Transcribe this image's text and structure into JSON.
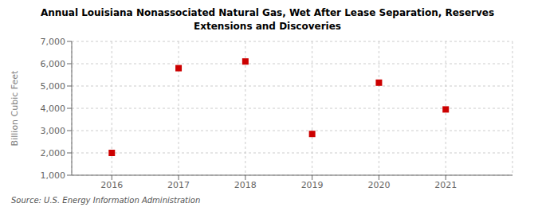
{
  "chart_data": {
    "type": "scatter",
    "title": "Annual Louisiana Nonassociated Natural Gas, Wet After Lease Separation, Reserves\nExtensions and Discoveries",
    "ylabel": "Billion Cubic Feet",
    "source": "Source: U.S. Energy Information Administration",
    "x": [
      2016,
      2017,
      2018,
      2019,
      2020,
      2021
    ],
    "values": [
      2000,
      5800,
      6100,
      2850,
      5150,
      3950
    ],
    "color": "#cc0000",
    "marker": "square",
    "grid": true,
    "xlim": [
      2015.4,
      2022.0
    ],
    "xticks": [
      2016,
      2017,
      2018,
      2019,
      2020,
      2021
    ],
    "ylim": [
      1000,
      7000
    ],
    "yticks": [
      {
        "value": 1000,
        "label": "1,000"
      },
      {
        "value": 2000,
        "label": "2,000"
      },
      {
        "value": 3000,
        "label": "3,000"
      },
      {
        "value": 4000,
        "label": "4,000"
      },
      {
        "value": 5000,
        "label": "5,000"
      },
      {
        "value": 6000,
        "label": "6,000"
      },
      {
        "value": 7000,
        "label": "7,000"
      }
    ]
  }
}
